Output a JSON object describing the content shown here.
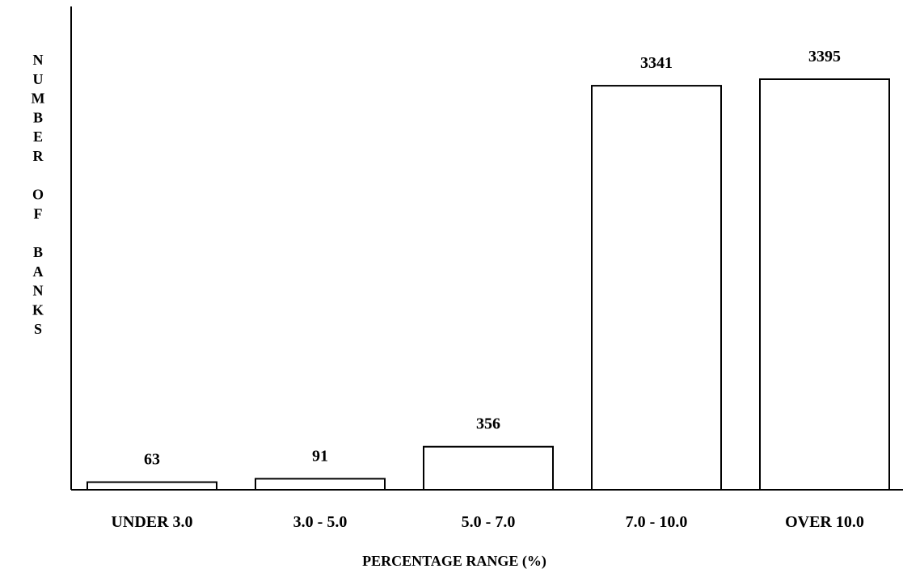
{
  "chart_data": {
    "type": "bar",
    "categories": [
      "UNDER 3.0",
      "3.0 - 5.0",
      "5.0 - 7.0",
      "7.0 - 10.0",
      "OVER 10.0"
    ],
    "values": [
      63,
      91,
      356,
      3341,
      3395
    ],
    "data_labels": [
      "63",
      "91",
      "356",
      "3341",
      "3395"
    ],
    "xlabel": "PERCENTAGE RANGE (%)",
    "ylabel_letters": [
      "N",
      "U",
      "M",
      "B",
      "E",
      "R",
      "",
      "O",
      "F",
      "",
      "B",
      "A",
      "N",
      "K",
      "S"
    ],
    "ylim": [
      0,
      3800
    ],
    "grid": false,
    "colors": {
      "bar_fill": "#ffffff",
      "bar_stroke": "#000000"
    }
  }
}
